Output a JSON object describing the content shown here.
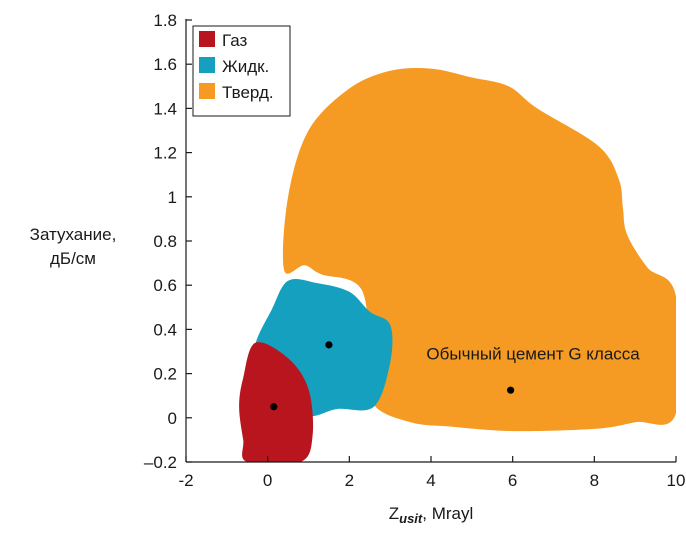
{
  "chart_data": {
    "type": "area",
    "title": "",
    "xlabel": {
      "main": "Z",
      "subscript": "usit",
      "suffix": ", Mrayl"
    },
    "ylabel": [
      "Затухание,",
      "дБ/см"
    ],
    "xlim": [
      -2,
      10
    ],
    "ylim": [
      -0.2,
      1.8
    ],
    "x_ticks": [
      -2,
      0,
      2,
      4,
      6,
      8,
      10
    ],
    "y_ticks": [
      -0.2,
      0,
      0.2,
      0.4,
      0.6,
      0.8,
      1,
      1.2,
      1.4,
      1.6,
      1.8
    ],
    "x_tick_labels": [
      "-2",
      "0",
      "2",
      "4",
      "6",
      "8",
      "10"
    ],
    "y_tick_labels": [
      "–0.2",
      "0",
      "0.2",
      "0.4",
      "0.6",
      "0.8",
      "1",
      "1.2",
      "1.4",
      "1.6",
      "1.8"
    ],
    "grid": false,
    "legend_position": "top-left",
    "series": [
      {
        "name": "Твердое",
        "legend": "Тверд.",
        "color": "#f59b23",
        "region": [
          [
            0.4,
            0.67
          ],
          [
            0.5,
            1.0
          ],
          [
            1.0,
            1.3
          ],
          [
            2.0,
            1.49
          ],
          [
            3.0,
            1.57
          ],
          [
            4.0,
            1.58
          ],
          [
            5.0,
            1.54
          ],
          [
            5.9,
            1.5
          ],
          [
            6.6,
            1.4
          ],
          [
            8.1,
            1.23
          ],
          [
            8.6,
            1.08
          ],
          [
            8.7,
            0.95
          ],
          [
            8.8,
            0.83
          ],
          [
            9.3,
            0.68
          ],
          [
            10.0,
            0.55
          ],
          [
            10.0,
            0.02
          ],
          [
            9.0,
            -0.02
          ],
          [
            8.0,
            -0.05
          ],
          [
            6.0,
            -0.06
          ],
          [
            4.5,
            -0.04
          ],
          [
            3.5,
            -0.02
          ],
          [
            2.6,
            0.06
          ],
          [
            2.5,
            0.25
          ],
          [
            2.3,
            0.58
          ],
          [
            1.3,
            0.65
          ],
          [
            0.9,
            0.69
          ],
          [
            0.4,
            0.67
          ]
        ]
      },
      {
        "name": "Жидкость",
        "legend": "Жидк.",
        "color": "#15a0c0",
        "region": [
          [
            -0.3,
            0.33
          ],
          [
            0.1,
            0.49
          ],
          [
            0.5,
            0.62
          ],
          [
            1.2,
            0.61
          ],
          [
            2.0,
            0.57
          ],
          [
            2.5,
            0.48
          ],
          [
            3.0,
            0.42
          ],
          [
            3.0,
            0.25
          ],
          [
            2.6,
            0.05
          ],
          [
            1.7,
            0.04
          ],
          [
            1.0,
            0.01
          ],
          [
            0.4,
            0.11
          ],
          [
            -0.1,
            0.24
          ],
          [
            -0.3,
            0.33
          ]
        ]
      },
      {
        "name": "Газ",
        "legend": "Газ",
        "color": "#b9151f",
        "region": [
          [
            -0.3,
            0.34
          ],
          [
            -0.6,
            0.18
          ],
          [
            -0.7,
            0.05
          ],
          [
            -0.6,
            -0.1
          ],
          [
            -0.5,
            -0.2
          ],
          [
            0.8,
            -0.2
          ],
          [
            1.1,
            -0.08
          ],
          [
            1.0,
            0.13
          ],
          [
            0.5,
            0.27
          ],
          [
            -0.3,
            0.34
          ]
        ]
      }
    ],
    "points": [
      {
        "x": 0.15,
        "y": 0.05
      },
      {
        "x": 1.5,
        "y": 0.33
      },
      {
        "x": 5.95,
        "y": 0.125
      }
    ],
    "annotations": [
      {
        "text": "Обычный цемент G класса",
        "x": 6.5,
        "y": 0.29
      }
    ]
  }
}
